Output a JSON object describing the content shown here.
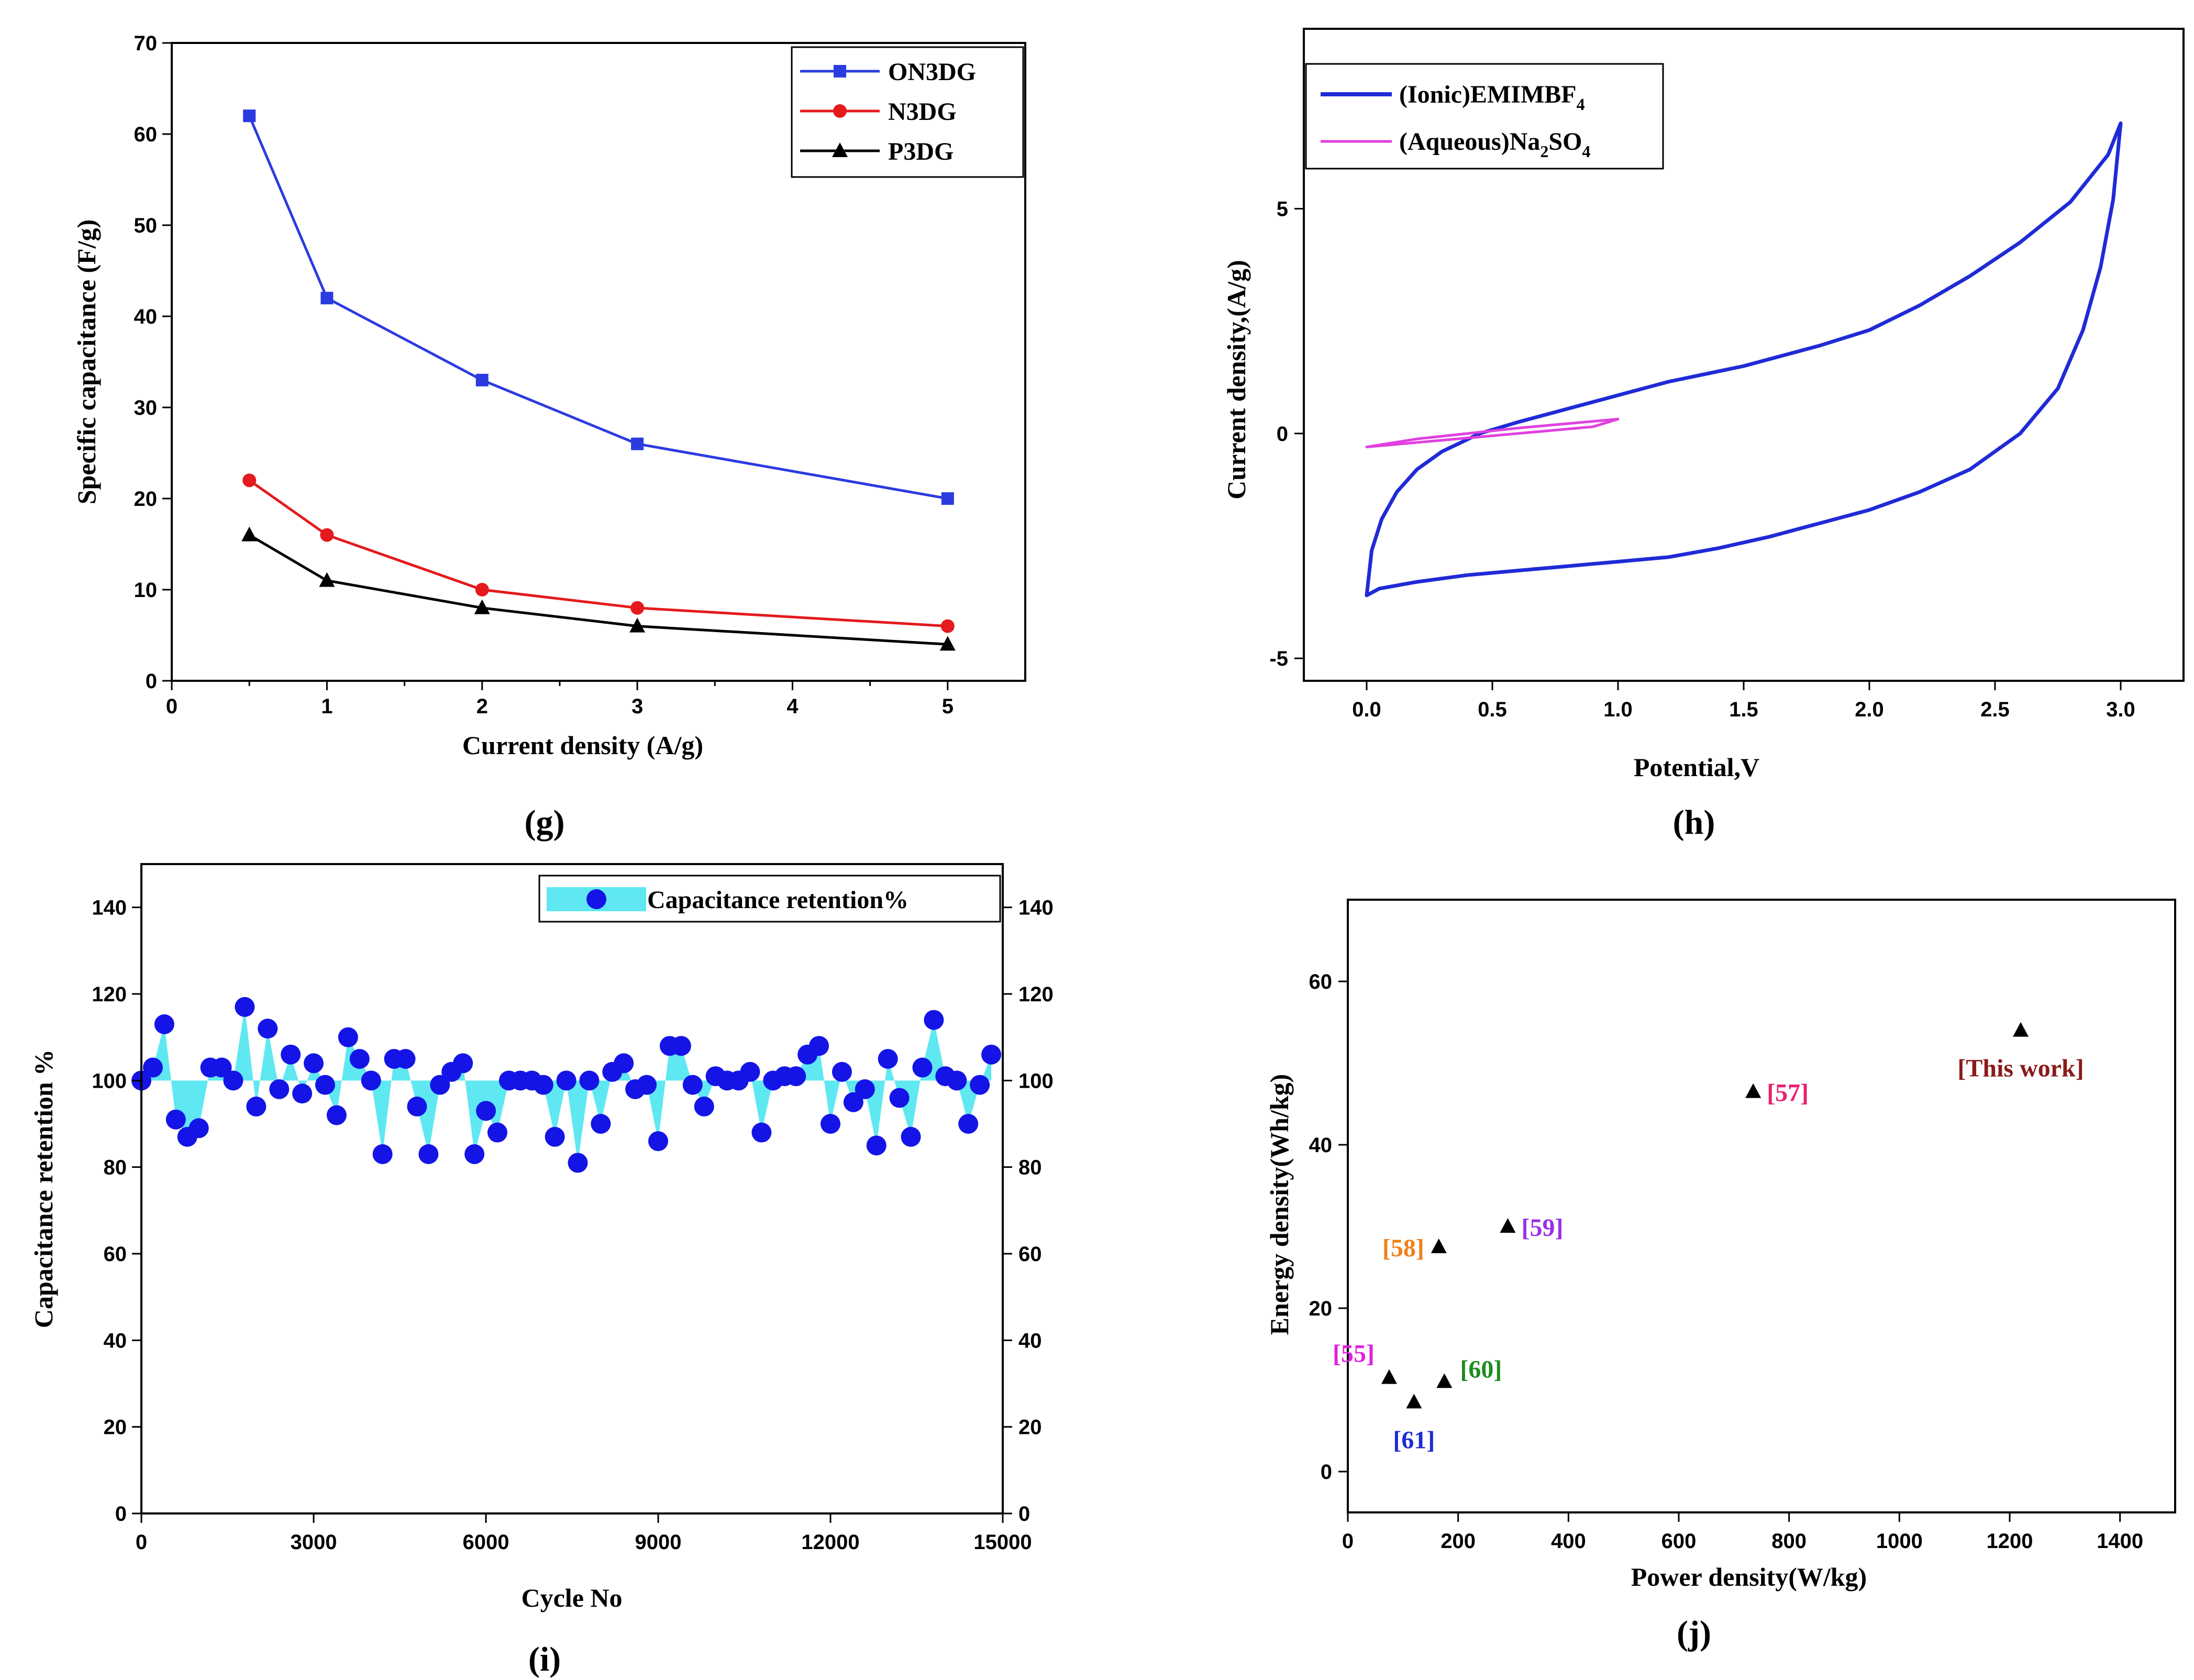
{
  "chart_data": [
    {
      "id": "g",
      "type": "line",
      "panel_label": "(g)",
      "xlabel": "Current density (A/g)",
      "ylabel": "Specific capacitance (F/g)",
      "xlim": [
        0,
        5.5
      ],
      "ylim": [
        0,
        70
      ],
      "xticks": [
        0,
        1,
        2,
        3,
        4,
        5
      ],
      "yticks": [
        0,
        10,
        20,
        30,
        40,
        50,
        60,
        70
      ],
      "legend_position": "top-right",
      "x": [
        0.5,
        1,
        2,
        3,
        5
      ],
      "series": [
        {
          "name": "ON3DG",
          "color": "#2b3be0",
          "marker": "square",
          "values": [
            62,
            42,
            33,
            26,
            20
          ]
        },
        {
          "name": "N3DG",
          "color": "#e41a1c",
          "marker": "circle",
          "values": [
            22,
            16,
            10,
            8,
            6
          ]
        },
        {
          "name": "P3DG",
          "color": "#000000",
          "marker": "triangle",
          "values": [
            16,
            11,
            8,
            6,
            4
          ]
        }
      ]
    },
    {
      "id": "h",
      "type": "line",
      "panel_label": "(h)",
      "xlabel": "Potential,V",
      "ylabel": "Current density,(A/g)",
      "xlim": [
        -0.25,
        3.25
      ],
      "ylim": [
        -5.5,
        9
      ],
      "xticks": [
        "0.0",
        "0.5",
        "1.0",
        "1.5",
        "2.0",
        "2.5",
        "3.0"
      ],
      "yticks": [
        "-5",
        "0",
        "5"
      ],
      "legend_position": "top-left",
      "series": [
        {
          "name": "(Ionic)EMIMBF4",
          "name_main": "(Ionic)EMIMBF",
          "name_sub": "4",
          "color": "#1f2bd6",
          "upper": [
            [
              0.0,
              -3.6
            ],
            [
              0.02,
              -2.6
            ],
            [
              0.06,
              -1.9
            ],
            [
              0.12,
              -1.3
            ],
            [
              0.2,
              -0.8
            ],
            [
              0.3,
              -0.4
            ],
            [
              0.45,
              0.0
            ],
            [
              0.6,
              0.25
            ],
            [
              0.8,
              0.55
            ],
            [
              1.0,
              0.85
            ],
            [
              1.2,
              1.15
            ],
            [
              1.5,
              1.5
            ],
            [
              1.8,
              1.95
            ],
            [
              2.0,
              2.3
            ],
            [
              2.2,
              2.85
            ],
            [
              2.4,
              3.5
            ],
            [
              2.6,
              4.25
            ],
            [
              2.8,
              5.15
            ],
            [
              2.95,
              6.2
            ],
            [
              3.0,
              6.9
            ]
          ],
          "lower": [
            [
              3.0,
              6.9
            ],
            [
              2.97,
              5.2
            ],
            [
              2.92,
              3.7
            ],
            [
              2.85,
              2.3
            ],
            [
              2.75,
              1.0
            ],
            [
              2.6,
              0.0
            ],
            [
              2.4,
              -0.8
            ],
            [
              2.2,
              -1.3
            ],
            [
              2.0,
              -1.7
            ],
            [
              1.8,
              -2.0
            ],
            [
              1.6,
              -2.3
            ],
            [
              1.4,
              -2.55
            ],
            [
              1.2,
              -2.75
            ],
            [
              1.0,
              -2.85
            ],
            [
              0.8,
              -2.95
            ],
            [
              0.6,
              -3.05
            ],
            [
              0.4,
              -3.15
            ],
            [
              0.2,
              -3.3
            ],
            [
              0.05,
              -3.45
            ],
            [
              0.0,
              -3.6
            ]
          ]
        },
        {
          "name": "(Aqueous)Na2SO4",
          "name_main": "(Aqueous)Na",
          "name_sub1": "2",
          "name_mid": "SO",
          "name_sub2": "4",
          "color": "#e040e0",
          "upper": [
            [
              0.0,
              -0.3
            ],
            [
              0.2,
              -0.12
            ],
            [
              0.4,
              0.0
            ],
            [
              0.6,
              0.12
            ],
            [
              0.8,
              0.22
            ],
            [
              1.0,
              0.32
            ]
          ],
          "lower": [
            [
              1.0,
              0.32
            ],
            [
              0.9,
              0.15
            ],
            [
              0.7,
              0.05
            ],
            [
              0.5,
              -0.05
            ],
            [
              0.3,
              -0.15
            ],
            [
              0.1,
              -0.25
            ],
            [
              0.0,
              -0.3
            ]
          ]
        }
      ]
    },
    {
      "id": "i",
      "type": "scatter",
      "panel_label": "(i)",
      "xlabel": "Cycle No",
      "ylabel": "Capacitance retention %",
      "xlim": [
        0,
        15000
      ],
      "ylim": [
        0,
        150
      ],
      "xticks": [
        0,
        3000,
        6000,
        9000,
        12000,
        15000
      ],
      "yticks": [
        0,
        20,
        40,
        60,
        80,
        100,
        120,
        140
      ],
      "legend_position": "top-right",
      "series": [
        {
          "name": "Capacitance retention%",
          "marker_color": "#1414e6",
          "fill_color": "#5fe8f2",
          "x": [
            0,
            200,
            400,
            600,
            800,
            1000,
            1200,
            1400,
            1600,
            1800,
            2000,
            2200,
            2400,
            2600,
            2800,
            3000,
            3200,
            3400,
            3600,
            3800,
            4000,
            4200,
            4400,
            4600,
            4800,
            5000,
            5200,
            5400,
            5600,
            5800,
            6000,
            6200,
            6400,
            6600,
            6800,
            7000,
            7200,
            7400,
            7600,
            7800,
            8000,
            8200,
            8400,
            8600,
            8800,
            9000,
            9200,
            9400,
            9600,
            9800,
            10000,
            10200,
            10400,
            10600,
            10800,
            11000,
            11200,
            11400,
            11600,
            11800,
            12000,
            12200,
            12400,
            12600,
            12800,
            13000,
            13200,
            13400,
            13600,
            13800,
            14000,
            14200,
            14400,
            14600,
            14800
          ],
          "values": [
            100,
            103,
            113,
            91,
            87,
            89,
            103,
            103,
            100,
            117,
            94,
            112,
            98,
            106,
            97,
            104,
            99,
            92,
            110,
            105,
            100,
            83,
            105,
            105,
            94,
            83,
            99,
            102,
            104,
            83,
            93,
            88,
            100,
            100,
            100,
            99,
            87,
            100,
            81,
            100,
            90,
            102,
            104,
            98,
            99,
            86,
            108,
            108,
            99,
            94,
            101,
            100,
            100,
            102,
            88,
            100,
            101,
            101,
            106,
            108,
            90,
            102,
            95,
            98,
            85,
            105,
            96,
            87,
            103,
            114,
            101,
            100,
            90,
            99,
            106
          ]
        }
      ]
    },
    {
      "id": "j",
      "type": "scatter",
      "panel_label": "(j)",
      "xlabel": "Power density(W/kg)",
      "ylabel": "Energy density(Wh/kg)",
      "xlim": [
        0,
        1500
      ],
      "ylim": [
        -5,
        70
      ],
      "xticks": [
        0,
        200,
        400,
        600,
        800,
        1000,
        1200,
        1400
      ],
      "yticks": [
        0,
        20,
        40,
        60
      ],
      "points": [
        {
          "label": "[55]",
          "x": 75,
          "y": 11.5,
          "color": "#e020e0",
          "anchor": "upper-left"
        },
        {
          "label": "[61]",
          "x": 120,
          "y": 8.5,
          "color": "#1c2bd6",
          "anchor": "below"
        },
        {
          "label": "[60]",
          "x": 175,
          "y": 11,
          "color": "#1e8c1e",
          "anchor": "upper-right"
        },
        {
          "label": "[58]",
          "x": 165,
          "y": 27.5,
          "color": "#f08019",
          "anchor": "left"
        },
        {
          "label": "[59]",
          "x": 290,
          "y": 30,
          "color": "#9b30e8",
          "anchor": "right"
        },
        {
          "label": "[57]",
          "x": 735,
          "y": 46.5,
          "color": "#e8206e",
          "anchor": "right"
        },
        {
          "label": "[This work]",
          "x": 1220,
          "y": 54,
          "color": "#8b1a1a",
          "anchor": "below"
        }
      ]
    }
  ]
}
